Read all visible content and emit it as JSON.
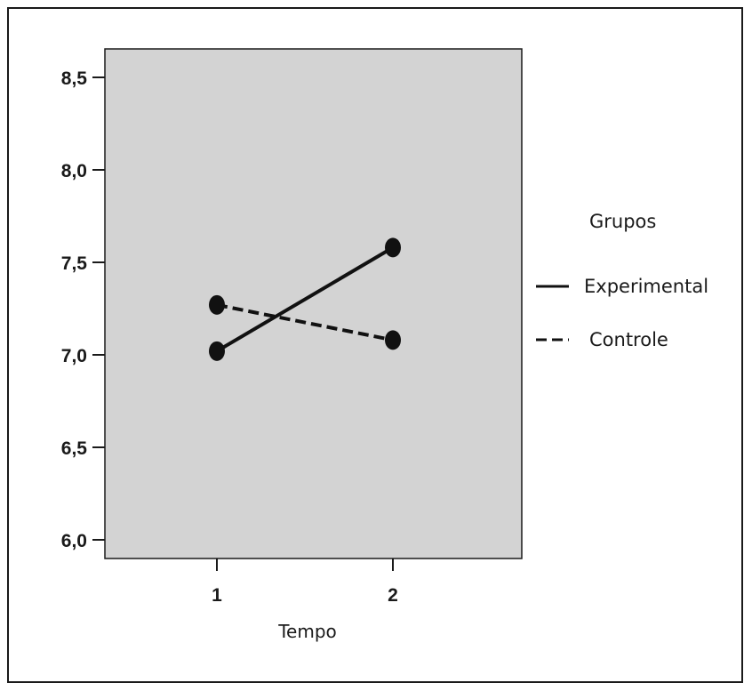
{
  "chart_data": {
    "type": "line",
    "xlabel": "Tempo",
    "ylabel": "",
    "categories": [
      "1",
      "2"
    ],
    "ylim": [
      6.0,
      8.6
    ],
    "yticks": [
      6.0,
      6.5,
      7.0,
      7.5,
      8.0,
      8.5
    ],
    "ytick_labels": [
      "6,0",
      "6,5",
      "7,0",
      "7,5",
      "8,0",
      "8,5"
    ],
    "grid": false,
    "plot_background": "#d3d3d3",
    "legend": {
      "title": "Grupos",
      "placement": "right"
    },
    "series": [
      {
        "name": "Experimental",
        "values": [
          7.02,
          7.58
        ],
        "line_style": "solid"
      },
      {
        "name": "Controle",
        "values": [
          7.27,
          7.08
        ],
        "line_style": "dashed"
      }
    ]
  }
}
